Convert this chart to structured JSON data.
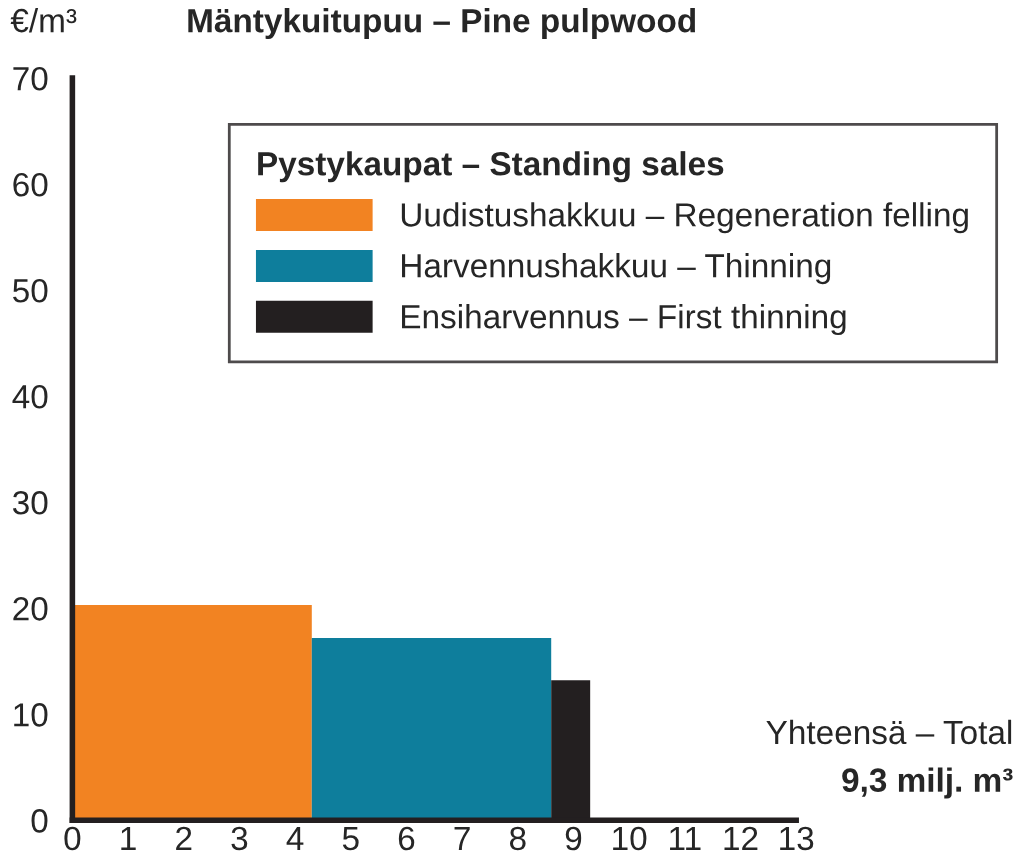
{
  "chart_data": {
    "type": "histogram",
    "title": "Mäntykuitupuu – Pine pulpwood",
    "ylabel": "€/m³",
    "legend_title": "Pystykaupat – Standing sales",
    "bins": [
      0,
      4.3,
      8.6,
      9.3
    ],
    "series": [
      {
        "name": "Uudistushakkuu – Regeneration felling",
        "color": "#f28322",
        "values": [
          20.3,
          null,
          null
        ]
      },
      {
        "name": "Harvennushakkuu – Thinning",
        "color": "#0e7e9c",
        "values": [
          null,
          17.2,
          null
        ]
      },
      {
        "name": "Ensiharvennus – First thinning",
        "color": "#231f20",
        "values": [
          null,
          null,
          13.2
        ]
      }
    ],
    "annotations": [
      "Yhteensä – Total",
      "9,3 milj. m³"
    ],
    "xlim": [
      0,
      13
    ],
    "xticks": [
      0,
      1,
      2,
      3,
      4,
      5,
      6,
      7,
      8,
      9,
      10,
      11,
      12,
      13
    ],
    "ylim": [
      0,
      70
    ],
    "yticks": [
      0,
      10,
      20,
      30,
      40,
      50,
      60,
      70
    ],
    "legend": "top right",
    "grid": false
  }
}
